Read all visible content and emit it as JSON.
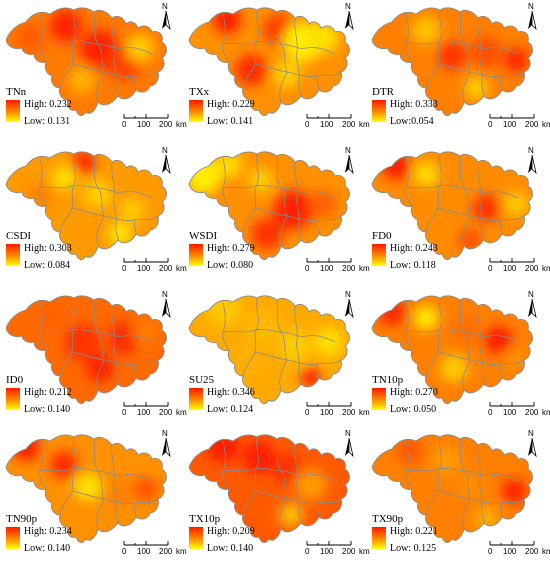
{
  "north_label": "N",
  "scale": {
    "t0": "0",
    "t1": "100",
    "t2": "200",
    "unit": "km"
  },
  "high_prefix": "High: ",
  "low_prefix": "Low: ",
  "colors": {
    "high": "#ff1a00",
    "mid": "#ff8c00",
    "low": "#ffff00",
    "boundary": "#8a8a8a"
  },
  "panels": [
    {
      "index": "TNn",
      "high": "0.232",
      "low": "0.131",
      "low_label": "Low: 0.131"
    },
    {
      "index": "TXx",
      "high": "0.229",
      "low": "0.141",
      "low_label": "Low: 0.141"
    },
    {
      "index": "DTR",
      "high": "0.333",
      "low": "0.054",
      "low_label": "Low:0.054"
    },
    {
      "index": "CSDI",
      "high": "0.303",
      "low": "0.084",
      "low_label": "Low: 0.084"
    },
    {
      "index": "WSDI",
      "high": "0.279",
      "low": "0.080",
      "low_label": "Low: 0.080"
    },
    {
      "index": "FD0",
      "high": "0.243",
      "low": "0.118",
      "low_label": "Low: 0.118"
    },
    {
      "index": "ID0",
      "high": "0.212",
      "low": "0.140",
      "low_label": "Low: 0.140"
    },
    {
      "index": "SU25",
      "high": "0.346",
      "low": "0.124",
      "low_label": "Low: 0.124"
    },
    {
      "index": "TN10p",
      "high": "0.270",
      "low": "0.050",
      "low_label": "Low: 0.050"
    },
    {
      "index": "TN90p",
      "high": "0.234",
      "low": "0.140",
      "low_label": "Low: 0.140"
    },
    {
      "index": "TX10p",
      "high": "0.209",
      "low": "0.140",
      "low_label": "Low: 0.140"
    },
    {
      "index": "TX90p",
      "high": "0.221",
      "low": "0.125",
      "low_label": "Low: 0.125"
    }
  ]
}
